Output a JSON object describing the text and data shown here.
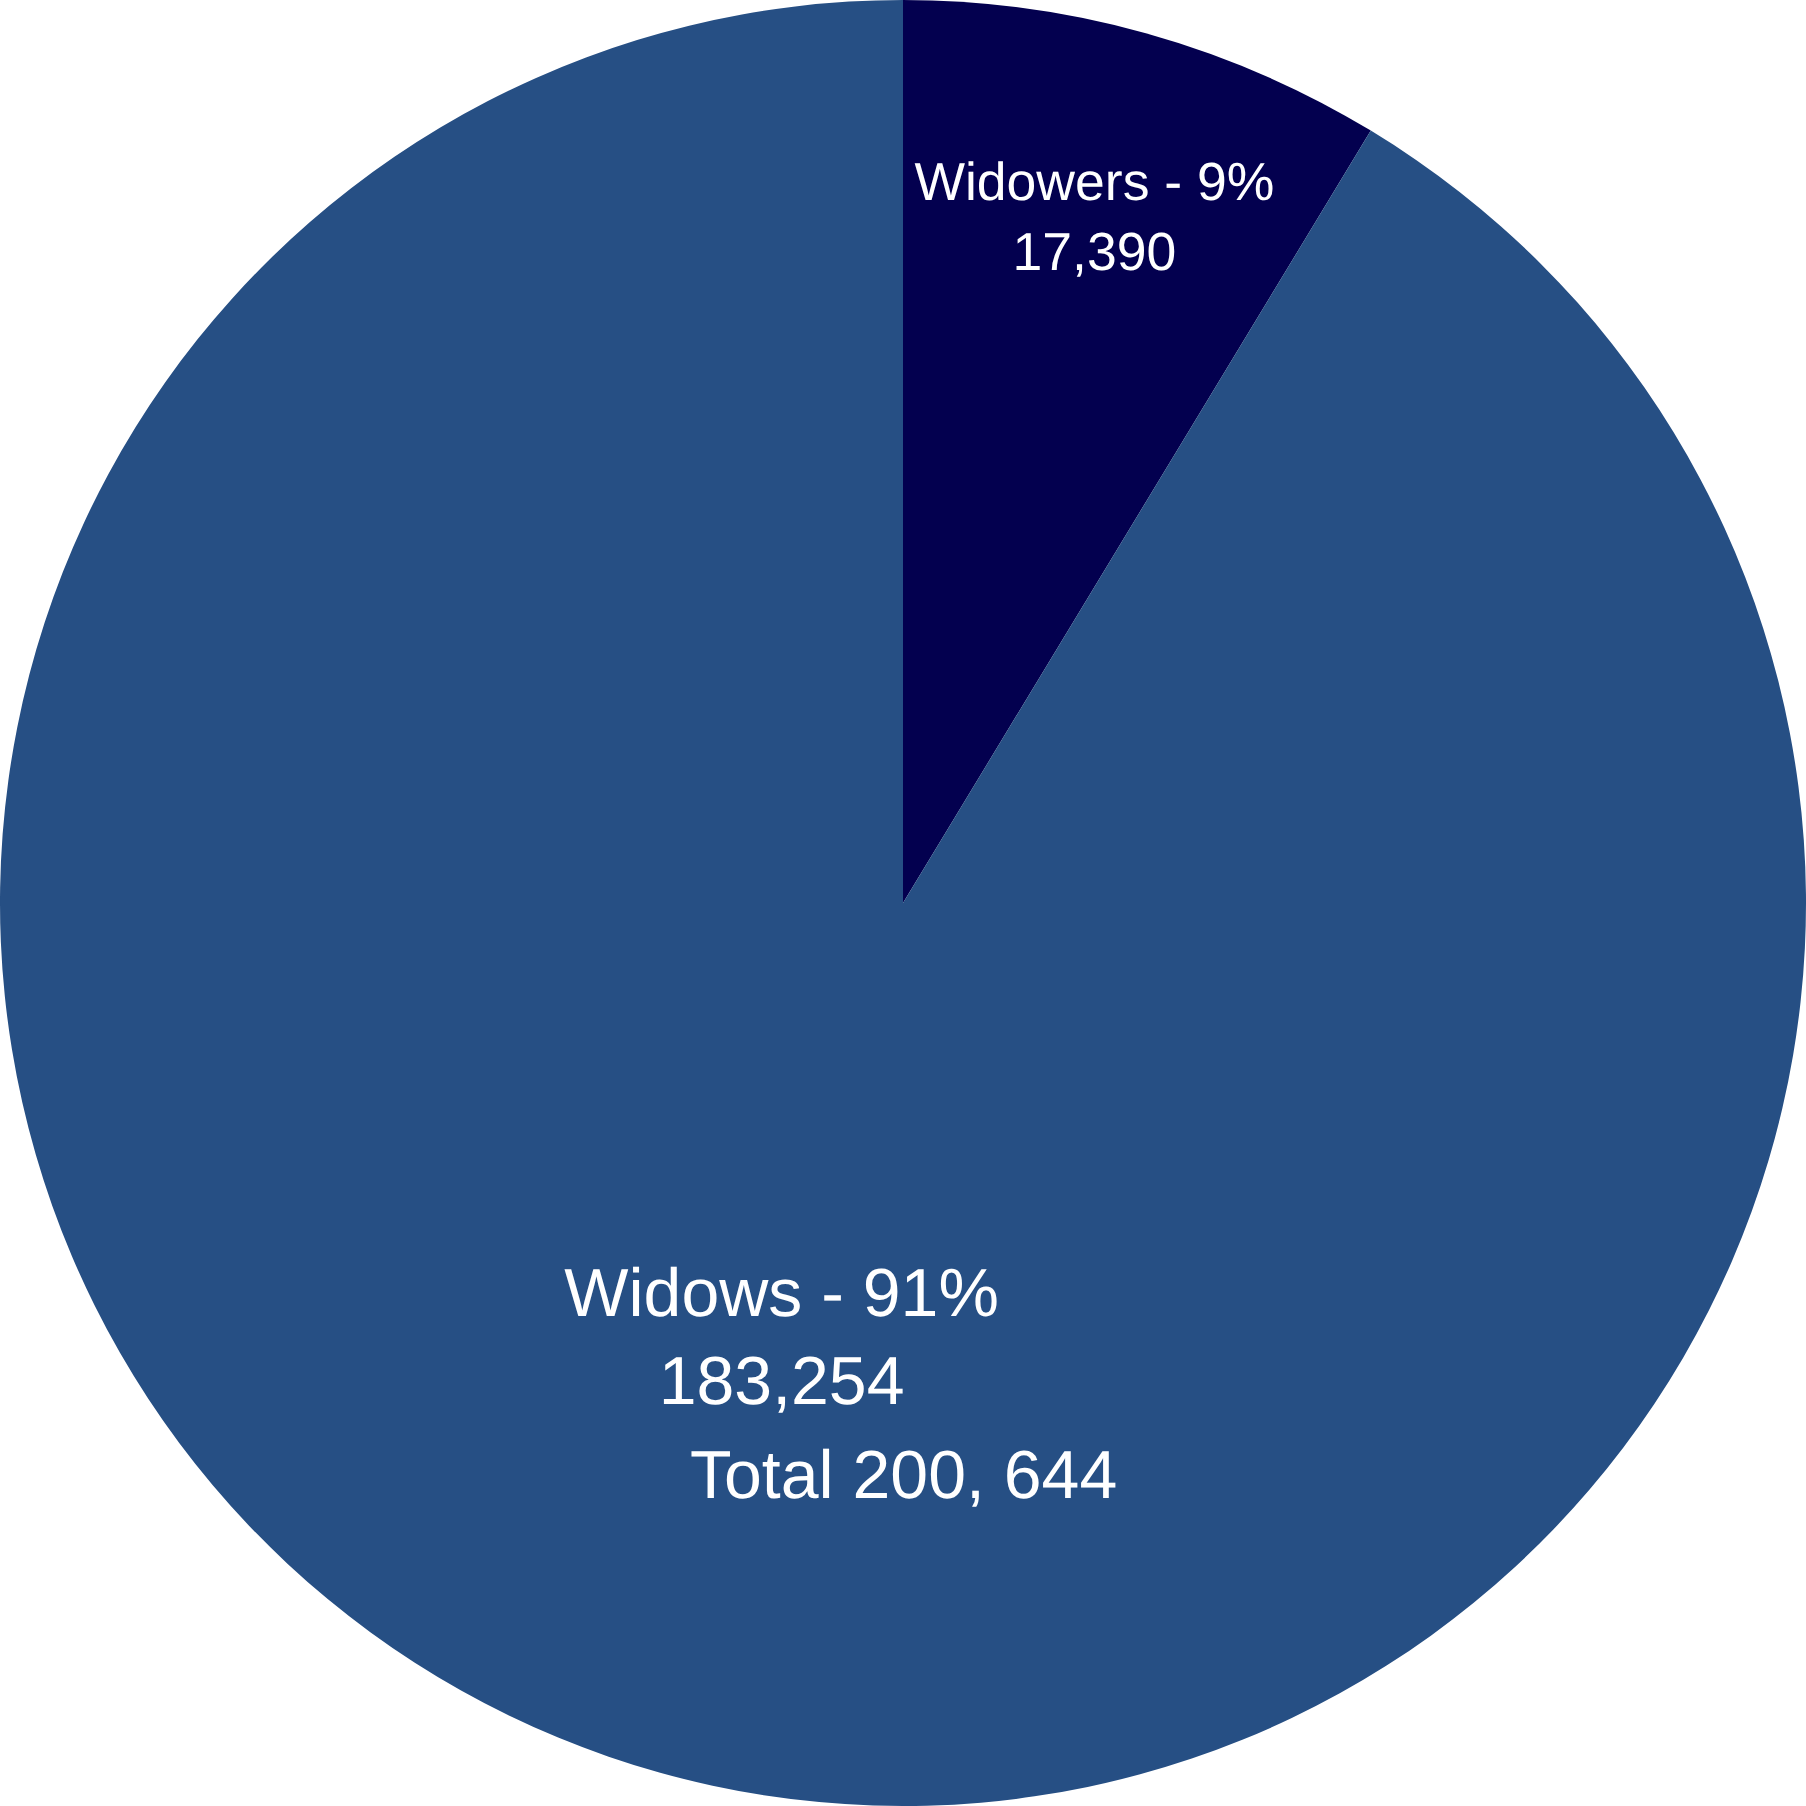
{
  "chart_data": {
    "type": "pie",
    "categories": [
      "Widowers - 9%",
      "Widows - 91%"
    ],
    "values": [
      17390,
      183254
    ],
    "value_labels": [
      "17,390",
      "183,254"
    ],
    "colors": [
      "#03004f",
      "#264f84"
    ],
    "annotations": [
      "Total 200, 644"
    ],
    "legend": false
  }
}
